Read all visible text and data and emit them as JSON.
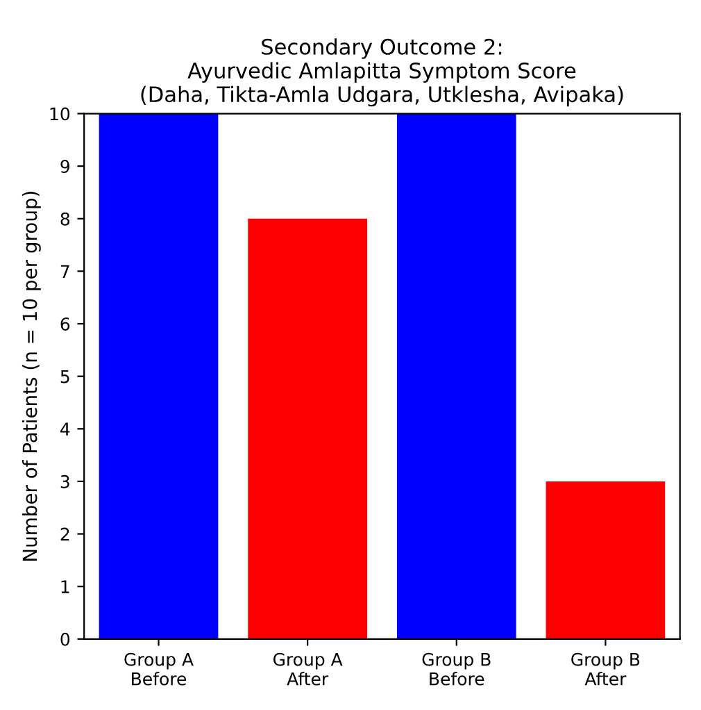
{
  "chart_data": {
    "type": "bar",
    "title": "Secondary Outcome 2:\nAyurvedic Amlapitta Symptom Score\n(Daha, Tikta-Amla Udgara, Utklesha, Avipaka)",
    "ylabel": "Number of Patients (n = 10 per group)",
    "categories": [
      "Group A\nBefore",
      "Group A\nAfter",
      "Group B\nBefore",
      "Group B\nAfter"
    ],
    "values": [
      10,
      8,
      10,
      3
    ],
    "colors": [
      "#0000ff",
      "#ff0000",
      "#0000ff",
      "#ff0000"
    ],
    "ylim": [
      0,
      10
    ],
    "yticks": [
      0,
      1,
      2,
      3,
      4,
      5,
      6,
      7,
      8,
      9,
      10
    ],
    "grid": false
  }
}
